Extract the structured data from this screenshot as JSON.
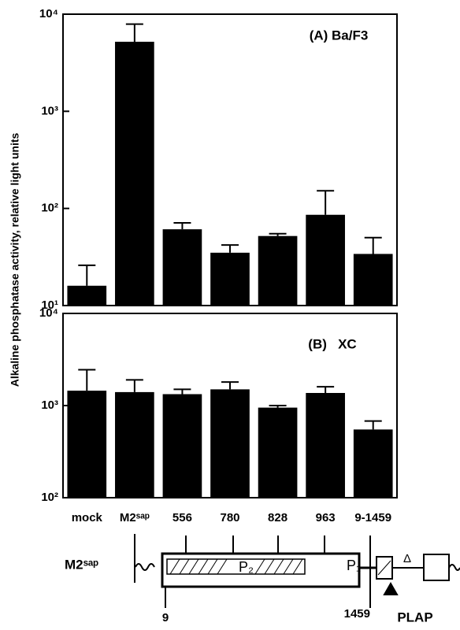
{
  "chart_data": [
    {
      "type": "bar",
      "title": "(A) Ba/F3",
      "ylabel": "Alkaline phosphatase activity, relative light units",
      "log_scale": true,
      "color": "#000000",
      "values": [
        16,
        5200,
        61,
        35,
        52,
        86,
        34
      ],
      "errors": [
        10,
        2700,
        10,
        7,
        3,
        66,
        16
      ],
      "ylim": [
        10,
        10000
      ],
      "yticks": [
        {
          "value": 10,
          "label": "10¹"
        },
        {
          "value": 100,
          "label": "10²"
        },
        {
          "value": 1000,
          "label": "10³"
        },
        {
          "value": 10000,
          "label": "10⁴"
        }
      ]
    },
    {
      "type": "bar",
      "title": "(B)   XC",
      "log_scale": true,
      "color": "#000000",
      "categories": [
        "mock",
        "M2ˢᵃᵖ",
        "556",
        "780",
        "828",
        "963",
        "9-1459"
      ],
      "values": [
        1450,
        1400,
        1330,
        1500,
        950,
        1370,
        550
      ],
      "errors": [
        1000,
        500,
        170,
        300,
        50,
        230,
        130
      ],
      "ylim": [
        100,
        10000
      ],
      "yticks": [
        {
          "value": 100,
          "label": "10²"
        },
        {
          "value": 1000,
          "label": "10³"
        },
        {
          "value": 10000,
          "label": "10⁴"
        }
      ]
    }
  ],
  "diagram": {
    "label": "M2ˢᵃᵖ",
    "p2": "P₂",
    "p1": "P₁",
    "start": "9",
    "end": "1459",
    "delta": "Δ",
    "plap": "PLAP"
  }
}
